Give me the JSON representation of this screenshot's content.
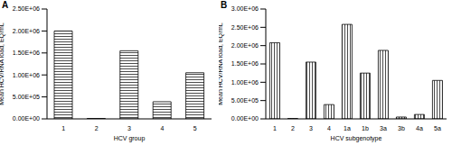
{
  "chart_data": [
    {
      "type": "bar",
      "title": "A",
      "x_label": "HCV group",
      "y_label": "Mean HCV/RNA load, EQ/mL",
      "categories": [
        "1",
        "2",
        "3",
        "4",
        "5"
      ],
      "values": [
        2000000,
        10000,
        1550000,
        390000,
        1050000
      ],
      "color": "#000000",
      "ylim": [
        0,
        2500000
      ],
      "yticks": [
        {
          "value": 0,
          "label": "0.00E+00"
        },
        {
          "value": 500000,
          "label": "5.00E+05"
        },
        {
          "value": 1000000,
          "label": "1.00E+06"
        },
        {
          "value": 1500000,
          "label": "1.50E+06"
        },
        {
          "value": 2000000,
          "label": "2.00E+06"
        },
        {
          "value": 2500000,
          "label": "2.50E+06"
        }
      ],
      "grid": false
    },
    {
      "type": "bar",
      "title": "B",
      "x_label": "HCV subgenotype",
      "y_label": "Mean HCV/RNA load, EQ/mL",
      "categories": [
        "1",
        "2",
        "3",
        "4",
        "1a",
        "1b",
        "3a",
        "3b",
        "4a",
        "5a"
      ],
      "values": [
        2080000,
        10000,
        1550000,
        390000,
        2580000,
        1250000,
        1870000,
        50000,
        120000,
        1050000
      ],
      "color": "#000000",
      "ylim": [
        0,
        3000000
      ],
      "yticks": [
        {
          "value": 0,
          "label": "0.00E+00"
        },
        {
          "value": 500000,
          "label": "5.00E+05"
        },
        {
          "value": 1000000,
          "label": "1.00E+06"
        },
        {
          "value": 1500000,
          "label": "1.50E+06"
        },
        {
          "value": 2000000,
          "label": "2.00E+06"
        },
        {
          "value": 2500000,
          "label": "2.50E+06"
        },
        {
          "value": 3000000,
          "label": "3.00E+06"
        }
      ],
      "grid": false
    }
  ]
}
